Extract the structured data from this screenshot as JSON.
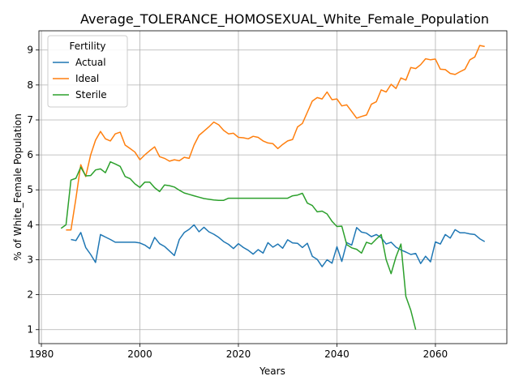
{
  "chart_data": {
    "type": "line",
    "title": "Average_TOLERANCE_HOMOSEXUAL_White_Female_Population",
    "xlabel": "Years",
    "ylabel": "% of White_Female Population",
    "xlim": [
      1979.5,
      2074.5
    ],
    "ylim": [
      0.6,
      9.55
    ],
    "x_ticks": [
      1980,
      2000,
      2020,
      2040,
      2060
    ],
    "y_ticks": [
      1,
      2,
      3,
      4,
      5,
      6,
      7,
      8,
      9
    ],
    "grid": true,
    "legend": {
      "title": "Fertility",
      "placement": "top-left"
    },
    "series": [
      {
        "name": "Actual",
        "color": "#1f77b4",
        "x": [
          1986,
          1987,
          1988,
          1989,
          1990,
          1991,
          1992,
          1993,
          1994,
          1995,
          1996,
          1997,
          1998,
          1999,
          2000,
          2001,
          2002,
          2003,
          2004,
          2005,
          2006,
          2007,
          2008,
          2009,
          2010,
          2011,
          2012,
          2013,
          2014,
          2015,
          2016,
          2017,
          2018,
          2019,
          2020,
          2021,
          2022,
          2023,
          2024,
          2025,
          2026,
          2027,
          2028,
          2029,
          2030,
          2031,
          2032,
          2033,
          2034,
          2035,
          2036,
          2037,
          2038,
          2039,
          2040,
          2041,
          2042,
          2043,
          2044,
          2045,
          2046,
          2047,
          2048,
          2049,
          2050,
          2051,
          2052,
          2053,
          2054,
          2055,
          2056,
          2057,
          2058,
          2059,
          2060,
          2061,
          2062,
          2063,
          2064,
          2065,
          2066,
          2067,
          2068,
          2069,
          2070
        ],
        "y": [
          3.58,
          3.55,
          3.78,
          3.35,
          3.15,
          2.92,
          3.72,
          3.65,
          3.58,
          3.5,
          3.5,
          3.5,
          3.5,
          3.5,
          3.48,
          3.42,
          3.32,
          3.64,
          3.46,
          3.38,
          3.25,
          3.12,
          3.58,
          3.78,
          3.87,
          4.0,
          3.8,
          3.93,
          3.8,
          3.73,
          3.64,
          3.52,
          3.44,
          3.32,
          3.46,
          3.35,
          3.27,
          3.16,
          3.29,
          3.19,
          3.49,
          3.36,
          3.45,
          3.33,
          3.57,
          3.48,
          3.47,
          3.35,
          3.47,
          3.1,
          3.01,
          2.8,
          3.0,
          2.9,
          3.37,
          2.95,
          3.49,
          3.42,
          3.92,
          3.79,
          3.76,
          3.66,
          3.72,
          3.63,
          3.45,
          3.5,
          3.36,
          3.28,
          3.22,
          3.15,
          3.18,
          2.89,
          3.1,
          2.94,
          3.51,
          3.45,
          3.72,
          3.62,
          3.86,
          3.77,
          3.77,
          3.74,
          3.72,
          3.6,
          3.52
        ]
      },
      {
        "name": "Ideal",
        "color": "#ff7f0e",
        "x": [
          1985,
          1986,
          1987,
          1988,
          1989,
          1990,
          1991,
          1992,
          1993,
          1994,
          1995,
          1996,
          1997,
          1998,
          1999,
          2000,
          2001,
          2002,
          2003,
          2004,
          2005,
          2006,
          2007,
          2008,
          2009,
          2010,
          2011,
          2012,
          2013,
          2014,
          2015,
          2016,
          2017,
          2018,
          2019,
          2020,
          2021,
          2022,
          2023,
          2024,
          2025,
          2026,
          2027,
          2028,
          2029,
          2030,
          2031,
          2032,
          2033,
          2034,
          2035,
          2036,
          2037,
          2038,
          2039,
          2040,
          2041,
          2042,
          2043,
          2044,
          2045,
          2046,
          2047,
          2048,
          2049,
          2050,
          2051,
          2052,
          2053,
          2054,
          2055,
          2056,
          2057,
          2058,
          2059,
          2060,
          2061,
          2062,
          2063,
          2064,
          2065,
          2066,
          2067,
          2068,
          2069,
          2070
        ],
        "y": [
          3.85,
          3.85,
          4.75,
          5.72,
          5.38,
          6.0,
          6.42,
          6.67,
          6.46,
          6.4,
          6.6,
          6.65,
          6.28,
          6.18,
          6.08,
          5.86,
          6.0,
          6.12,
          6.23,
          5.95,
          5.9,
          5.82,
          5.86,
          5.83,
          5.93,
          5.9,
          6.28,
          6.56,
          6.68,
          6.8,
          6.94,
          6.86,
          6.7,
          6.6,
          6.62,
          6.5,
          6.49,
          6.46,
          6.53,
          6.5,
          6.4,
          6.34,
          6.32,
          6.18,
          6.3,
          6.4,
          6.44,
          6.8,
          6.9,
          7.22,
          7.54,
          7.64,
          7.6,
          7.8,
          7.58,
          7.6,
          7.4,
          7.43,
          7.24,
          7.05,
          7.1,
          7.14,
          7.45,
          7.52,
          7.86,
          7.8,
          8.02,
          7.9,
          8.2,
          8.14,
          8.5,
          8.47,
          8.58,
          8.75,
          8.72,
          8.74,
          8.45,
          8.44,
          8.33,
          8.3,
          8.38,
          8.45,
          8.72,
          8.8,
          9.13,
          9.1
        ]
      },
      {
        "name": "Sterile",
        "color": "#2ca02c",
        "x": [
          1984,
          1985,
          1986,
          1987,
          1988,
          1989,
          1990,
          1991,
          1992,
          1993,
          1994,
          1995,
          1996,
          1997,
          1998,
          1999,
          2000,
          2001,
          2002,
          2003,
          2004,
          2005,
          2006,
          2007,
          2008,
          2009,
          2010,
          2011,
          2012,
          2013,
          2014,
          2015,
          2016,
          2017,
          2018,
          2019,
          2020,
          2021,
          2022,
          2023,
          2024,
          2025,
          2026,
          2027,
          2028,
          2029,
          2030,
          2031,
          2032,
          2033,
          2034,
          2035,
          2036,
          2037,
          2038,
          2039,
          2040,
          2041,
          2042,
          2043,
          2044,
          2045,
          2046,
          2047,
          2048,
          2049,
          2050,
          2051,
          2052,
          2053,
          2054,
          2055,
          2056
        ],
        "y": [
          3.9,
          4.0,
          5.28,
          5.33,
          5.65,
          5.4,
          5.41,
          5.57,
          5.6,
          5.49,
          5.8,
          5.74,
          5.67,
          5.38,
          5.32,
          5.17,
          5.07,
          5.22,
          5.22,
          5.06,
          4.95,
          5.14,
          5.12,
          5.08,
          4.99,
          4.91,
          4.87,
          4.83,
          4.79,
          4.75,
          4.73,
          4.71,
          4.7,
          4.7,
          4.76,
          4.76,
          4.76,
          4.76,
          4.76,
          4.76,
          4.76,
          4.76,
          4.76,
          4.76,
          4.76,
          4.76,
          4.76,
          4.83,
          4.85,
          4.9,
          4.62,
          4.55,
          4.37,
          4.39,
          4.31,
          4.1,
          3.95,
          3.96,
          3.43,
          3.34,
          3.3,
          3.19,
          3.5,
          3.45,
          3.59,
          3.72,
          3.0,
          2.6,
          3.08,
          3.45,
          1.95,
          1.55,
          1.0
        ]
      }
    ]
  }
}
